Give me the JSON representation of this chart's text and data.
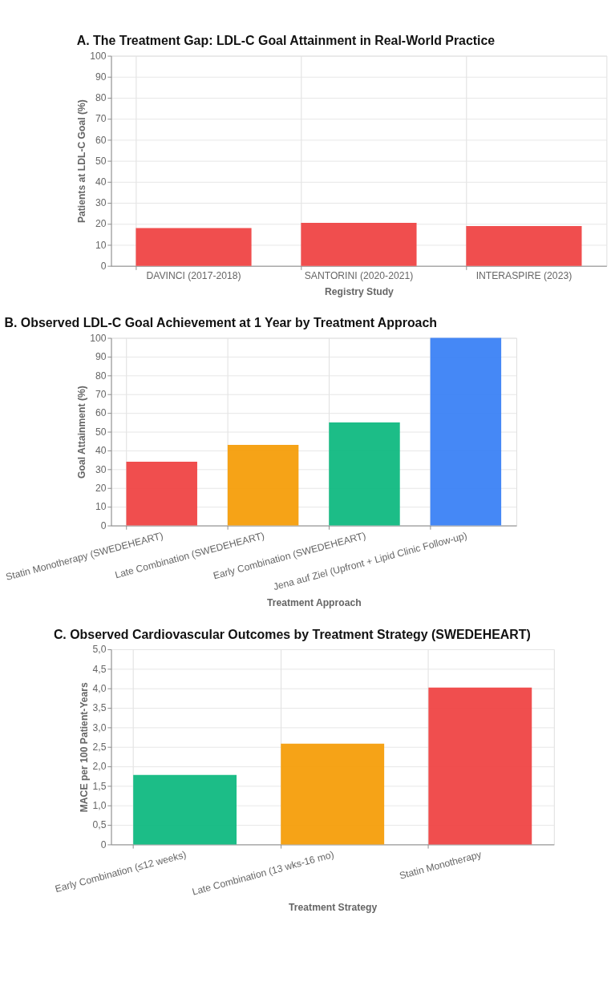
{
  "chart_data": [
    {
      "type": "bar",
      "title": "A. The Treatment Gap: LDL-C Goal Attainment in Real-World Practice",
      "xlabel": "Registry Study",
      "ylabel": "Patients at LDL-C Goal (%)",
      "categories": [
        "DAVINCI (2017-2018)",
        "SANTORINI (2020-2021)",
        "INTERASPIRE (2023)"
      ],
      "values": [
        18,
        20.5,
        19
      ],
      "colors": [
        "#ef4444",
        "#ef4444",
        "#ef4444"
      ],
      "ylim": [
        0,
        100
      ],
      "yticks": [
        0,
        10,
        20,
        30,
        40,
        50,
        60,
        70,
        80,
        90,
        100
      ],
      "grid": true
    },
    {
      "type": "bar",
      "title": "B. Observed LDL-C Goal Achievement at 1 Year by Treatment Approach",
      "xlabel": "Treatment Approach",
      "ylabel": "Goal Attainment (%)",
      "categories": [
        "Statin Monotherapy (SWEDEHEART)",
        "Late Combination (SWEDEHEART)",
        "Early Combination (SWEDEHEART)",
        "Jena auf Ziel (Upfront + Lipid Clinic Follow-up)"
      ],
      "values": [
        34,
        43,
        55,
        100
      ],
      "colors": [
        "#ef4444",
        "#f59e0b",
        "#10b981",
        "#3b82f6"
      ],
      "ylim": [
        0,
        100
      ],
      "yticks": [
        0,
        10,
        20,
        30,
        40,
        50,
        60,
        70,
        80,
        90,
        100
      ],
      "grid": true
    },
    {
      "type": "bar",
      "title": "C. Observed Cardiovascular Outcomes by Treatment Strategy (SWEDEHEART)",
      "xlabel": "Treatment Strategy",
      "ylabel": "MACE per 100 Patient-Years",
      "categories": [
        "Early Combination (≤12 weeks)",
        "Late Combination (13 wks-16 mo)",
        "Statin Monotherapy"
      ],
      "values": [
        1.78,
        2.58,
        4.02
      ],
      "colors": [
        "#10b981",
        "#f59e0b",
        "#ef4444"
      ],
      "ylim": [
        0,
        5
      ],
      "yticks": [
        {
          "value": 0,
          "label": "0"
        },
        {
          "value": 0.5,
          "label": "0,5"
        },
        {
          "value": 1,
          "label": "1,0"
        },
        {
          "value": 1.5,
          "label": "1,5"
        },
        {
          "value": 2,
          "label": "2,0"
        },
        {
          "value": 2.5,
          "label": "2,5"
        },
        {
          "value": 3,
          "label": "3,0"
        },
        {
          "value": 3.5,
          "label": "3,5"
        },
        {
          "value": 4,
          "label": "4,0"
        },
        {
          "value": 4.5,
          "label": "4,5"
        },
        {
          "value": 5,
          "label": "5,0"
        }
      ],
      "grid": true
    }
  ]
}
